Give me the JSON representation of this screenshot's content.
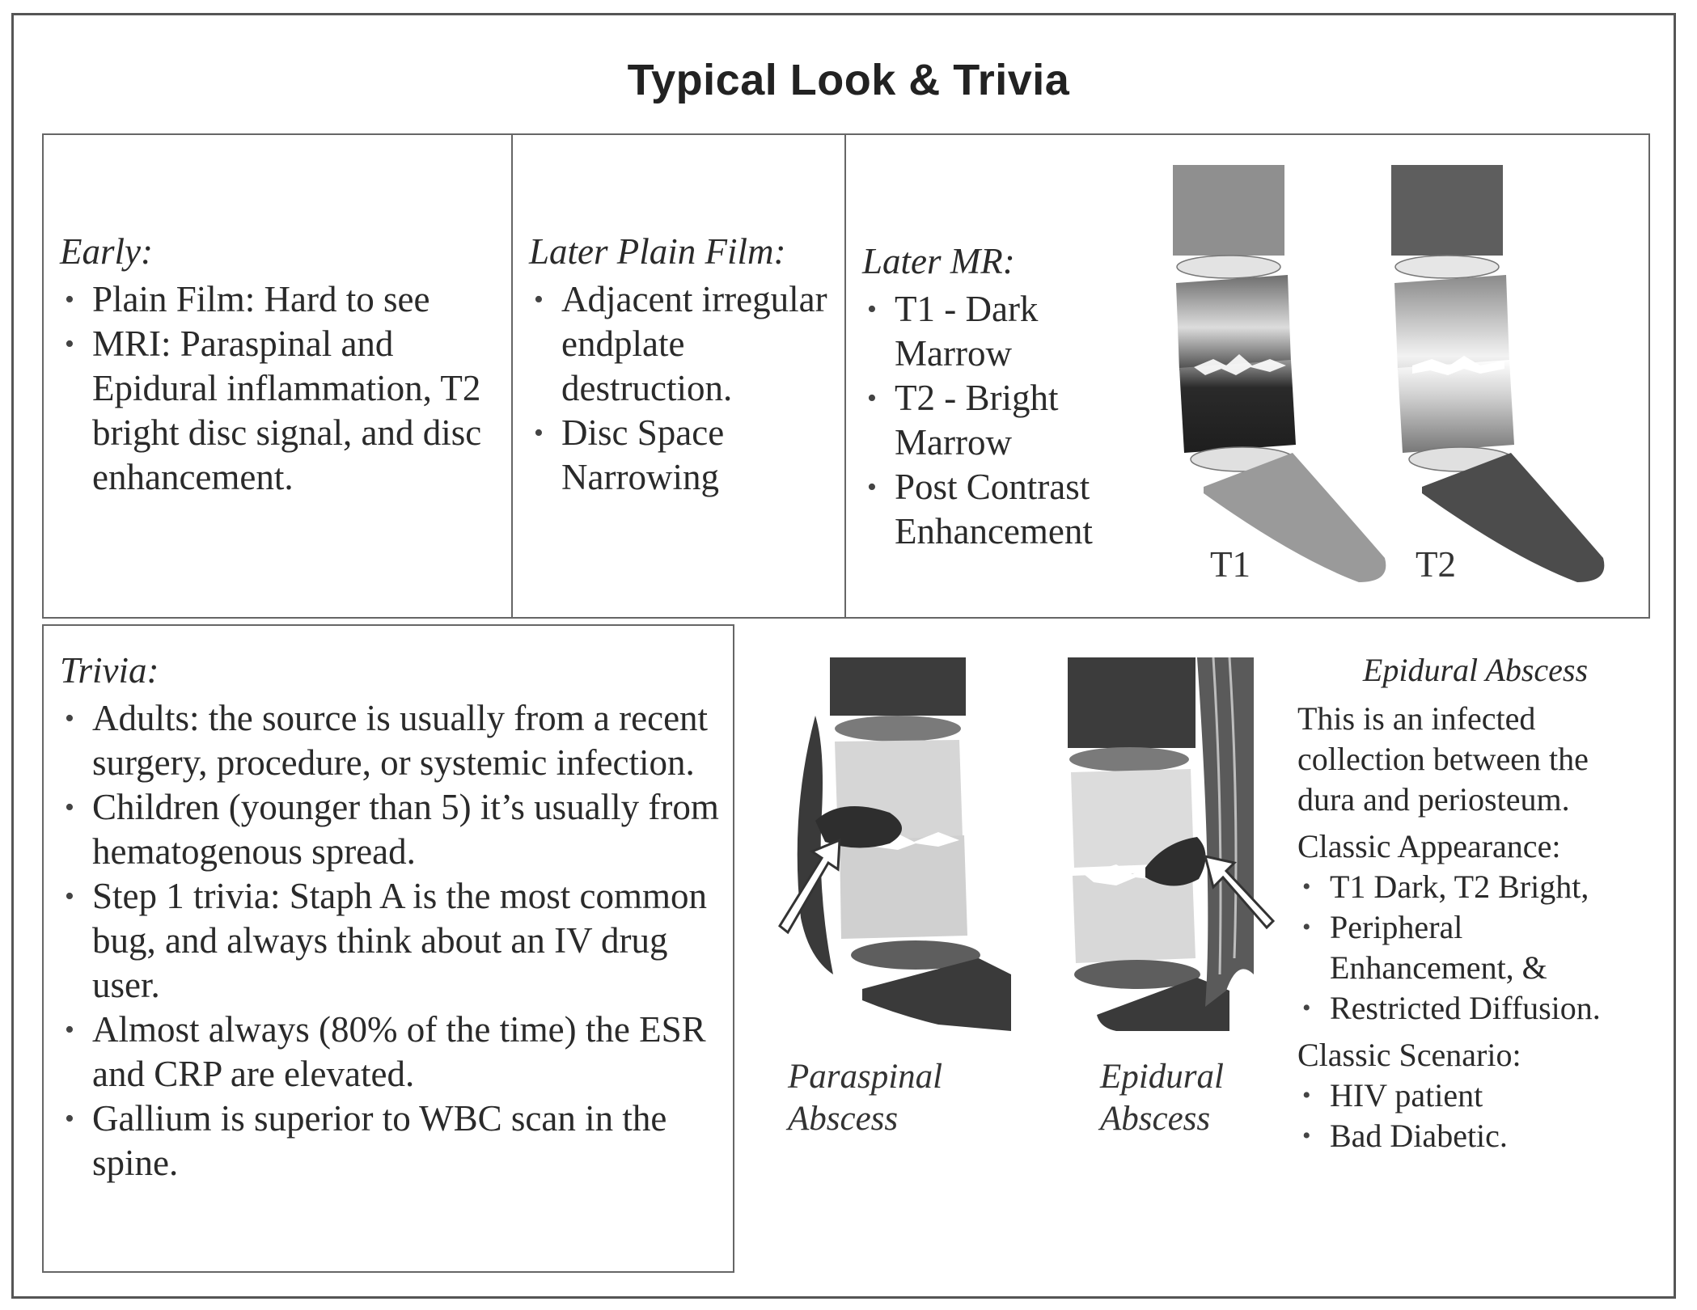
{
  "title": "Typical Look & Trivia",
  "early": {
    "heading": "Early:",
    "items": [
      "Plain Film: Hard to see",
      "MRI: Paraspinal and Epidural inflammation, T2 bright disc signal, and disc enhancement."
    ]
  },
  "later_plain": {
    "heading": "Later Plain Film:",
    "items": [
      "Adjacent irregular endplate destruction.",
      "Disc Space Narrowing"
    ]
  },
  "later_mr": {
    "heading": "Later MR:",
    "items": [
      "T1 - Dark Marrow",
      "T2 - Bright Marrow",
      "Post Contrast Enhancement"
    ],
    "label_t1": "T1",
    "label_t2": "T2"
  },
  "trivia": {
    "heading": "Trivia:",
    "items": [
      "Adults: the source is usually from a recent surgery, procedure, or systemic infection.",
      "Children (younger than 5) it’s usually from hematogenous spread.",
      "Step 1 trivia: Staph A is the most common bug, and always think about an IV drug user.",
      "Almost always (80% of the time) the ESR and CRP are elevated.",
      "Gallium is superior to WBC scan in the spine."
    ]
  },
  "figures": {
    "paraspinal_caption_1": "Paraspinal",
    "paraspinal_caption_2": "Abscess",
    "epidural_caption_1": "Epidural",
    "epidural_caption_2": "Abscess"
  },
  "epidural_panel": {
    "heading": "Epidural Abscess",
    "description": "This is an infected collection between the dura and periosteum.",
    "appearance_heading": "Classic Appearance:",
    "appearance_items": [
      "T1 Dark, T2 Bright,",
      "Peripheral Enhancement, &",
      "Restricted Diffusion."
    ],
    "scenario_heading": "Classic Scenario:",
    "scenario_items": [
      "HIV patient",
      "Bad Diabetic."
    ]
  }
}
